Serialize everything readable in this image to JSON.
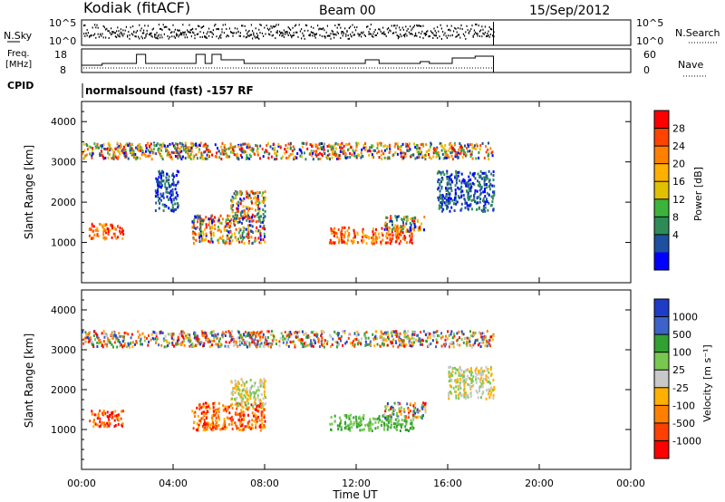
{
  "header": {
    "station": "Kodiak (fitACF)",
    "beam": "Beam 00",
    "date": "15/Sep/2012"
  },
  "top_panels": {
    "nsky_label": "N.Sky",
    "nsky_top_tick": "10^5",
    "nsky_bottom_tick": "10^0",
    "nsearch_label": "N.Search",
    "nsearch_top_tick": "10^5",
    "nsearch_bottom_tick": "10^0",
    "freq_label_line1": "Freq.",
    "freq_label_line2": "[MHz]",
    "freq_ticks": [
      "18",
      "8"
    ],
    "nave_label": "Nave",
    "nave_ticks": [
      "60",
      "0"
    ],
    "cpid_label": "CPID",
    "cpid_text": "normalsound (fast) -157 RF"
  },
  "chart_data": [
    {
      "type": "heatmap",
      "name": "power_panel",
      "ylabel": "Slant Range [km]",
      "xlabel": "Time UT",
      "ylim": [
        0,
        4500
      ],
      "xlim_hours": [
        0,
        24
      ],
      "y_ticks": [
        "1000",
        "2000",
        "3000",
        "4000"
      ],
      "x_ticks": [
        "00:00",
        "04:00",
        "08:00",
        "12:00",
        "16:00",
        "20:00",
        "00:00"
      ],
      "colorbar": {
        "label": "Power [dB]",
        "ticks": [
          "28",
          "24",
          "20",
          "16",
          "12",
          "8",
          "4"
        ],
        "colors": [
          "#ff0000",
          "#ff4400",
          "#ff8000",
          "#ffb000",
          "#e0c000",
          "#3cb43c",
          "#2e8b57",
          "#1e50a0",
          "#0000ff"
        ]
      },
      "scatter_regions": [
        {
          "t": [
            0.3,
            1.8
          ],
          "r": [
            1100,
            1500
          ],
          "level": "high"
        },
        {
          "t": [
            3.2,
            4.2
          ],
          "r": [
            1800,
            2800
          ],
          "level": "low"
        },
        {
          "t": [
            4.8,
            8.0
          ],
          "r": [
            1000,
            1700
          ],
          "level": "mixed"
        },
        {
          "t": [
            6.5,
            8.0
          ],
          "r": [
            1600,
            2300
          ],
          "level": "mixed"
        },
        {
          "t": [
            10.8,
            14.5
          ],
          "r": [
            1000,
            1400
          ],
          "level": "high"
        },
        {
          "t": [
            13.2,
            15.0
          ],
          "r": [
            1300,
            1700
          ],
          "level": "mixed"
        },
        {
          "t": [
            15.5,
            18.0
          ],
          "r": [
            1800,
            2800
          ],
          "level": "low"
        },
        {
          "t": [
            0.0,
            18.0
          ],
          "r": [
            3100,
            3500
          ],
          "level": "mixed"
        }
      ]
    },
    {
      "type": "heatmap",
      "name": "velocity_panel",
      "ylabel": "Slant Range [km]",
      "xlabel": "Time UT",
      "ylim": [
        0,
        4500
      ],
      "xlim_hours": [
        0,
        24
      ],
      "y_ticks": [
        "1000",
        "2000",
        "3000",
        "4000"
      ],
      "x_ticks": [
        "00:00",
        "04:00",
        "08:00",
        "12:00",
        "16:00",
        "20:00",
        "00:00"
      ],
      "colorbar": {
        "label": "Velocity [m s⁻¹]",
        "ticks": [
          "1000",
          "500",
          "100",
          "25",
          "-25",
          "-100",
          "-500",
          "-1000"
        ],
        "colors": [
          "#1e3cc8",
          "#3c64c8",
          "#32a032",
          "#78c850",
          "#c8c8c8",
          "#ffb000",
          "#ff8000",
          "#ff4000",
          "#ff0000"
        ]
      },
      "scatter_regions": [
        {
          "t": [
            0.3,
            1.8
          ],
          "r": [
            1100,
            1500
          ],
          "level": "negative"
        },
        {
          "t": [
            4.8,
            8.0
          ],
          "r": [
            1000,
            1700
          ],
          "level": "negative"
        },
        {
          "t": [
            6.5,
            8.0
          ],
          "r": [
            1600,
            2300
          ],
          "level": "neutral"
        },
        {
          "t": [
            10.8,
            14.5
          ],
          "r": [
            1000,
            1400
          ],
          "level": "positive"
        },
        {
          "t": [
            13.2,
            15.0
          ],
          "r": [
            1300,
            1700
          ],
          "level": "mixed"
        },
        {
          "t": [
            16.0,
            18.0
          ],
          "r": [
            1800,
            2600
          ],
          "level": "neutral"
        },
        {
          "t": [
            0.0,
            18.0
          ],
          "r": [
            3100,
            3500
          ],
          "level": "mixed"
        }
      ]
    }
  ]
}
